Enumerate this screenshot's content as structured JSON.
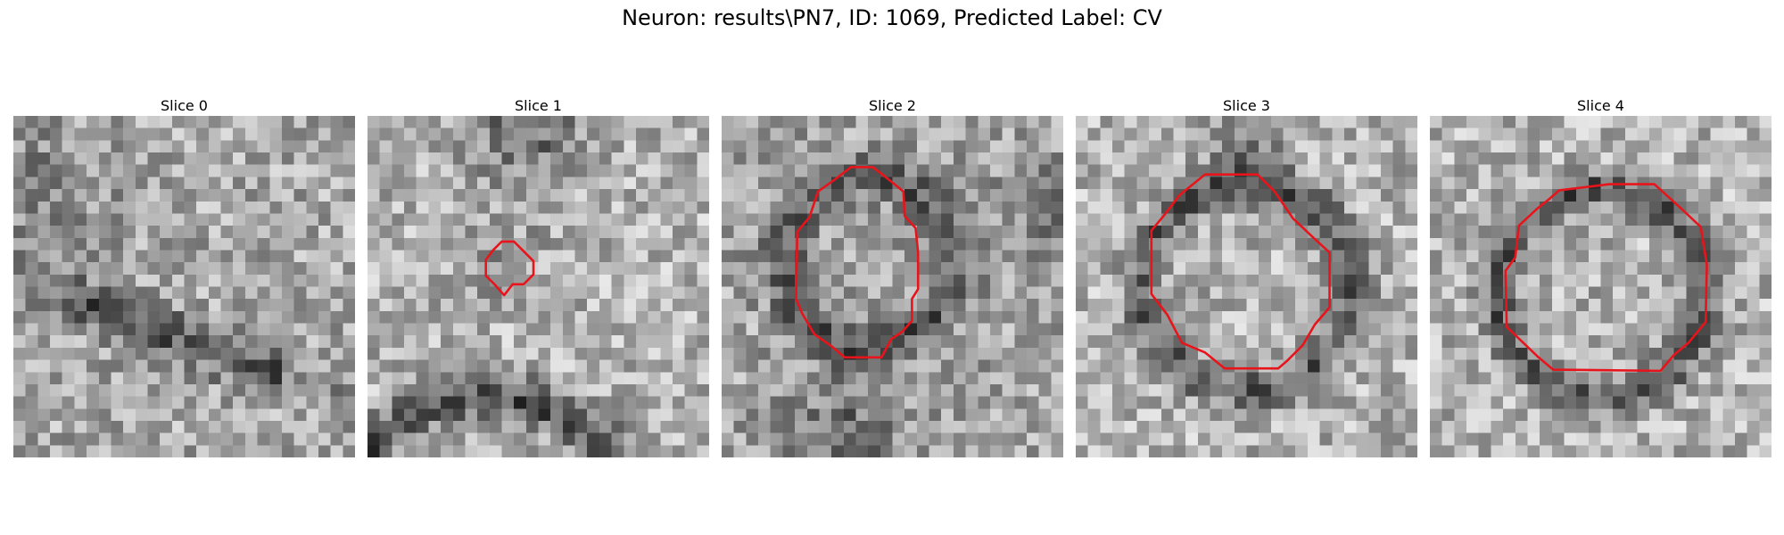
{
  "figure": {
    "title": "Neuron: results\\PN7, ID: 1069, Predicted Label: CV"
  },
  "panels": [
    {
      "title": "Slice 0",
      "has_contour": false
    },
    {
      "title": "Slice 1",
      "has_contour": true
    },
    {
      "title": "Slice 2",
      "has_contour": true
    },
    {
      "title": "Slice 3",
      "has_contour": true
    },
    {
      "title": "Slice 4",
      "has_contour": true
    }
  ],
  "colors": {
    "contour": "#e8141b",
    "background": "#ffffff"
  }
}
